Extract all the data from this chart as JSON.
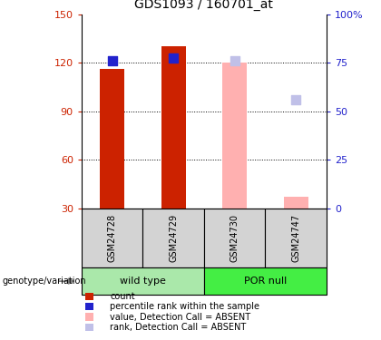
{
  "title": "GDS1093 / 160701_at",
  "samples": [
    "GSM24728",
    "GSM24729",
    "GSM24730",
    "GSM24747"
  ],
  "groups": [
    {
      "label": "wild type",
      "samples": [
        "GSM24728",
        "GSM24729"
      ],
      "color": "#aae8aa"
    },
    {
      "label": "POR null",
      "samples": [
        "GSM24730",
        "GSM24747"
      ],
      "color": "#44ee44"
    }
  ],
  "bar_values": [
    116,
    130,
    120,
    37
  ],
  "bar_colors": [
    "#cc2200",
    "#cc2200",
    "#ffb0b0",
    "#ffb0b0"
  ],
  "sq_values": [
    121,
    123,
    121,
    97
  ],
  "sq_colors": [
    "#2222cc",
    "#2222cc",
    "#c0c0e8",
    "#c0c0e8"
  ],
  "ylim_left": [
    30,
    150
  ],
  "yticks_left": [
    30,
    60,
    90,
    120,
    150
  ],
  "ylim_right": [
    0,
    100
  ],
  "yticks_right": [
    0,
    25,
    50,
    75,
    100
  ],
  "ytick_labels_right": [
    "0",
    "25",
    "50",
    "75",
    "100%"
  ],
  "left_color": "#cc2200",
  "right_color": "#2222cc",
  "bar_bottom": 30,
  "legend_items": [
    {
      "label": "count",
      "color": "#cc2200"
    },
    {
      "label": "percentile rank within the sample",
      "color": "#2222cc"
    },
    {
      "label": "value, Detection Call = ABSENT",
      "color": "#ffb0b0"
    },
    {
      "label": "rank, Detection Call = ABSENT",
      "color": "#c0c0e8"
    }
  ],
  "genotype_label": "genotype/variation"
}
